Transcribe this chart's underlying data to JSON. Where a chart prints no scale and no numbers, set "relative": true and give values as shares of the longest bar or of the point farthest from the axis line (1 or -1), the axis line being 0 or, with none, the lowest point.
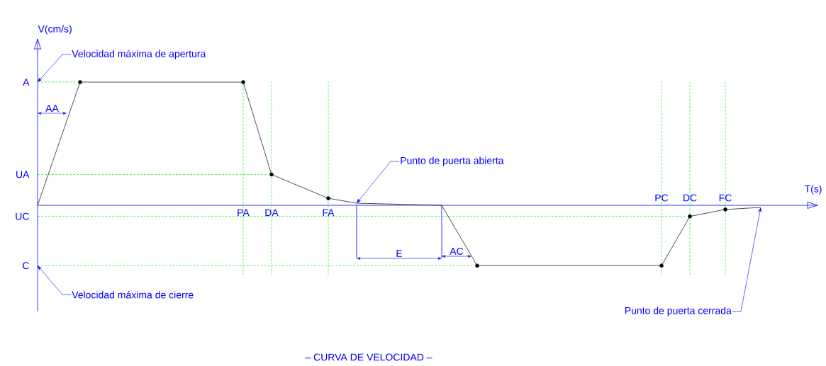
{
  "chart_data": {
    "type": "line",
    "title": "– CURVA DE VELOCIDAD –",
    "xlabel": "T(s)",
    "ylabel": "V(cm/s)",
    "relative": true,
    "tick_labels": "x",
    "grid": "x",
    "categories": [
      null,
      null,
      null,
      null,
      null,
      null,
      null,
      null,
      null,
      null,
      null,
      null,
      null,
      null,
      null,
      null,
      null,
      null,
      null,
      null,
      null,
      null,
      null,
      null,
      null,
      null,
      null,
      null,
      null,
      "PA",
      null,
      null,
      null,
      "DA",
      null,
      null,
      null,
      null,
      null,
      null,
      null,
      "FA",
      null,
      null,
      null,
      null,
      null,
      null,
      null,
      null,
      null,
      null,
      null,
      null,
      null,
      null,
      null,
      null,
      null,
      null,
      null,
      null,
      null,
      null,
      null,
      null,
      null,
      null,
      null,
      null,
      null,
      null,
      null,
      null,
      null,
      null,
      null,
      null,
      null,
      null,
      null,
      null,
      null,
      null,
      null,
      null,
      null,
      null,
      "PC",
      null,
      null,
      null,
      "DC",
      null,
      null,
      null,
      null,
      "FC",
      null,
      null,
      null,
      null,
      null
    ],
    "series": [
      {
        "color": "#000000",
        "marker": "none",
        "values": [
          0,
          null,
          null,
          null,
          null,
          null,
          1,
          null,
          null,
          null,
          null,
          null,
          null,
          null,
          null,
          null,
          null,
          null,
          null,
          null,
          null,
          null,
          null,
          null,
          null,
          null,
          null,
          null,
          null,
          1,
          null,
          null,
          null,
          0.25,
          null,
          null,
          null,
          null,
          null,
          null,
          null,
          0.057,
          null,
          null,
          null,
          0.017,
          null,
          null,
          null,
          null,
          null,
          null,
          null,
          null,
          null,
          null,
          null,
          0,
          null,
          null,
          null,
          null,
          -0.49,
          null,
          null,
          null,
          null,
          null,
          null,
          null,
          null,
          null,
          null,
          null,
          null,
          null,
          null,
          null,
          null,
          null,
          null,
          null,
          null,
          null,
          null,
          null,
          null,
          null,
          -0.49,
          null,
          null,
          null,
          -0.09,
          null,
          null,
          null,
          null,
          -0.034,
          null,
          null,
          null,
          null,
          -0.017
        ]
      },
      {
        "type": "scatter",
        "color": "#000000",
        "marker": "circle",
        "values": [
          null,
          null,
          null,
          null,
          null,
          null,
          1,
          null,
          null,
          null,
          null,
          null,
          null,
          null,
          null,
          null,
          null,
          null,
          null,
          null,
          null,
          null,
          null,
          null,
          null,
          null,
          null,
          null,
          null,
          1,
          null,
          null,
          null,
          0.25,
          null,
          null,
          null,
          null,
          null,
          null,
          null,
          0.057,
          null,
          null,
          null,
          null,
          null,
          null,
          null,
          null,
          null,
          null,
          null,
          null,
          null,
          null,
          null,
          null,
          null,
          null,
          null,
          null,
          -0.49,
          null,
          null,
          null,
          null,
          null,
          null,
          null,
          null,
          null,
          null,
          null,
          null,
          null,
          null,
          null,
          null,
          null,
          null,
          null,
          null,
          null,
          null,
          null,
          null,
          null,
          -0.49,
          null,
          null,
          null,
          -0.09,
          null,
          null,
          null,
          null,
          -0.034,
          null,
          null,
          null,
          null,
          null
        ]
      }
    ],
    "ref_lines": [
      {
        "axis": "y",
        "value": 1,
        "label": "A",
        "color": "#00e000",
        "line_style": "dashed"
      },
      {
        "axis": "y",
        "value": 0.25,
        "label": "UA",
        "color": "#00e000",
        "line_style": "dashed"
      },
      {
        "axis": "y",
        "value": -0.09,
        "label": "UC",
        "color": "#00e000",
        "line_style": "dashed"
      },
      {
        "axis": "y",
        "value": -0.49,
        "label": "C",
        "color": "#00e000",
        "line_style": "dashed"
      }
    ],
    "annotations": [
      "Velocidad máxima de apertura",
      "Velocidad máxima de cierre",
      "Punto de puerta abierta",
      "Punto de puerta cerrada",
      "AA",
      "E",
      "AC"
    ]
  }
}
